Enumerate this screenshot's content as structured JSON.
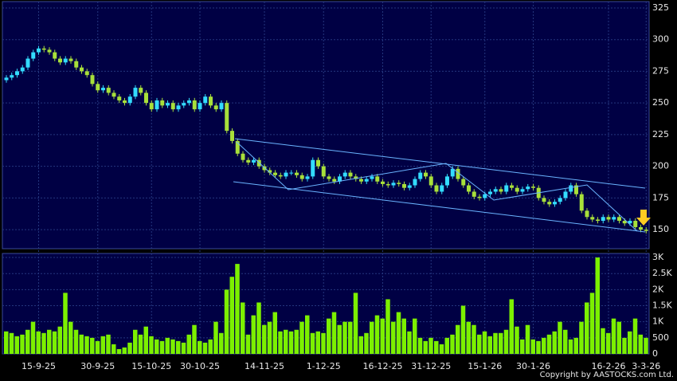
{
  "chart_data": [
    {
      "type": "candlestick",
      "categories": [
        null,
        null,
        null,
        null,
        null,
        null,
        "15-9-25",
        null,
        null,
        null,
        null,
        null,
        null,
        null,
        null,
        null,
        null,
        "30-9-25",
        null,
        null,
        null,
        null,
        null,
        null,
        null,
        null,
        null,
        "15-10-25",
        null,
        null,
        null,
        null,
        null,
        null,
        null,
        null,
        "30-10-25",
        null,
        null,
        null,
        null,
        null,
        null,
        null,
        null,
        null,
        null,
        null,
        "14-11-25",
        null,
        null,
        null,
        null,
        null,
        null,
        null,
        null,
        null,
        null,
        "1-12-25",
        null,
        null,
        null,
        null,
        null,
        null,
        null,
        null,
        null,
        null,
        "16-12-25",
        null,
        null,
        null,
        null,
        null,
        null,
        null,
        null,
        "31-12-25",
        null,
        null,
        null,
        null,
        null,
        null,
        null,
        null,
        null,
        "15-1-26",
        null,
        null,
        null,
        null,
        null,
        null,
        null,
        null,
        "30-1-26",
        null,
        null,
        null,
        null,
        null,
        null,
        null,
        null,
        null,
        null,
        null,
        null,
        null,
        "16-2-26",
        null,
        null,
        null,
        null,
        null,
        null,
        "3-3-26"
      ],
      "open": [
        268,
        270,
        272,
        275,
        278,
        285,
        290,
        293,
        292,
        290,
        285,
        282,
        285,
        283,
        278,
        275,
        272,
        265,
        260,
        262,
        258,
        255,
        252,
        250,
        255,
        262,
        258,
        250,
        245,
        252,
        248,
        250,
        245,
        248,
        250,
        252,
        245,
        250,
        255,
        248,
        245,
        250,
        228,
        220,
        210,
        205,
        203,
        205,
        200,
        197,
        195,
        193,
        192,
        195,
        195,
        193,
        190,
        192,
        205,
        200,
        192,
        190,
        188,
        192,
        195,
        192,
        190,
        188,
        190,
        192,
        188,
        186,
        185,
        187,
        186,
        183,
        185,
        190,
        195,
        192,
        185,
        180,
        185,
        192,
        198,
        190,
        185,
        180,
        176,
        175,
        178,
        180,
        182,
        180,
        185,
        183,
        180,
        182,
        184,
        183,
        175,
        172,
        170,
        172,
        175,
        180,
        185,
        178,
        165,
        160,
        158,
        157,
        160,
        158,
        160,
        157,
        155,
        157,
        152,
        150
      ],
      "high": [
        272,
        274,
        277,
        280,
        287,
        292,
        295,
        295,
        294,
        292,
        287,
        287,
        287,
        285,
        280,
        277,
        274,
        267,
        264,
        264,
        260,
        257,
        254,
        257,
        264,
        264,
        260,
        252,
        254,
        254,
        252,
        252,
        250,
        252,
        254,
        254,
        252,
        257,
        257,
        250,
        252,
        252,
        230,
        222,
        212,
        207,
        207,
        207,
        202,
        199,
        197,
        195,
        197,
        197,
        197,
        195,
        194,
        207,
        207,
        202,
        194,
        192,
        194,
        197,
        197,
        194,
        192,
        192,
        194,
        194,
        190,
        188,
        189,
        189,
        188,
        187,
        192,
        197,
        197,
        194,
        187,
        187,
        194,
        200,
        200,
        192,
        187,
        182,
        178,
        180,
        182,
        184,
        184,
        187,
        187,
        185,
        184,
        186,
        186,
        185,
        177,
        174,
        174,
        177,
        182,
        187,
        187,
        180,
        167,
        162,
        160,
        162,
        162,
        162,
        162,
        159,
        159,
        159,
        154,
        152
      ],
      "low": [
        266,
        268,
        270,
        273,
        276,
        283,
        288,
        290,
        288,
        283,
        280,
        280,
        281,
        276,
        273,
        270,
        263,
        258,
        258,
        256,
        253,
        250,
        248,
        248,
        253,
        256,
        248,
        243,
        243,
        246,
        246,
        243,
        243,
        246,
        248,
        243,
        243,
        248,
        246,
        243,
        243,
        226,
        218,
        208,
        203,
        201,
        201,
        198,
        195,
        193,
        191,
        190,
        190,
        193,
        191,
        188,
        188,
        190,
        198,
        190,
        188,
        186,
        186,
        190,
        190,
        188,
        186,
        186,
        188,
        186,
        184,
        183,
        183,
        184,
        181,
        181,
        183,
        188,
        190,
        183,
        178,
        178,
        183,
        190,
        188,
        183,
        178,
        174,
        173,
        173,
        176,
        178,
        178,
        178,
        181,
        178,
        178,
        180,
        181,
        173,
        170,
        168,
        168,
        170,
        173,
        178,
        176,
        163,
        158,
        156,
        155,
        155,
        156,
        156,
        155,
        153,
        153,
        150,
        148,
        147
      ],
      "close": [
        270,
        272,
        275,
        278,
        285,
        290,
        293,
        292,
        290,
        285,
        282,
        285,
        283,
        278,
        275,
        272,
        265,
        260,
        262,
        258,
        255,
        252,
        250,
        255,
        262,
        258,
        250,
        245,
        252,
        248,
        250,
        245,
        248,
        250,
        252,
        245,
        250,
        255,
        248,
        245,
        250,
        228,
        220,
        210,
        205,
        203,
        205,
        200,
        197,
        195,
        193,
        192,
        195,
        195,
        193,
        190,
        192,
        205,
        200,
        192,
        190,
        188,
        192,
        195,
        192,
        190,
        188,
        190,
        192,
        188,
        186,
        185,
        187,
        186,
        183,
        185,
        190,
        195,
        192,
        185,
        180,
        185,
        192,
        198,
        190,
        185,
        180,
        176,
        175,
        178,
        180,
        182,
        180,
        185,
        183,
        180,
        182,
        184,
        183,
        175,
        172,
        170,
        172,
        175,
        180,
        185,
        178,
        165,
        160,
        158,
        157,
        160,
        158,
        160,
        157,
        155,
        157,
        152,
        150,
        149
      ],
      "up_color": "#33dcff",
      "down_color": "#a8e03a",
      "ylim": [
        135,
        330
      ],
      "yticks": [
        150,
        175,
        200,
        225,
        250,
        275,
        300,
        325
      ],
      "grid": true
    },
    {
      "type": "bar",
      "values": [
        700,
        650,
        550,
        600,
        750,
        1000,
        700,
        650,
        750,
        700,
        850,
        1900,
        1000,
        750,
        600,
        550,
        500,
        400,
        550,
        600,
        300,
        150,
        200,
        350,
        750,
        600,
        850,
        550,
        450,
        400,
        500,
        450,
        400,
        350,
        600,
        900,
        400,
        350,
        450,
        1000,
        650,
        2000,
        2400,
        2800,
        1600,
        600,
        1200,
        1600,
        900,
        1000,
        1300,
        700,
        750,
        700,
        750,
        1000,
        1200,
        650,
        700,
        650,
        1100,
        1300,
        900,
        1000,
        1000,
        1900,
        550,
        650,
        1000,
        1200,
        1100,
        1700,
        1000,
        1300,
        1100,
        700,
        1100,
        500,
        400,
        500,
        400,
        300,
        500,
        600,
        900,
        1500,
        1000,
        900,
        600,
        700,
        550,
        650,
        650,
        750,
        1700,
        850,
        450,
        900,
        450,
        400,
        500,
        600,
        700,
        1000,
        750,
        450,
        500,
        1000,
        1600,
        1900,
        3000,
        800,
        650,
        1100,
        1000,
        500,
        700,
        1100,
        600,
        500
      ],
      "color": "#7cf000",
      "ylim": [
        0,
        3125
      ],
      "yticks": [
        0,
        500,
        {
          "value": 1000,
          "label": "1K"
        },
        {
          "value": 1500,
          "label": "1.5K"
        },
        {
          "value": 2000,
          "label": "2K"
        },
        {
          "value": 2500,
          "label": "2.5K"
        },
        {
          "value": 3000,
          "label": "3K"
        }
      ],
      "grid": true,
      "footer": "Copyright by AASTOCKS.com Ltd."
    }
  ]
}
